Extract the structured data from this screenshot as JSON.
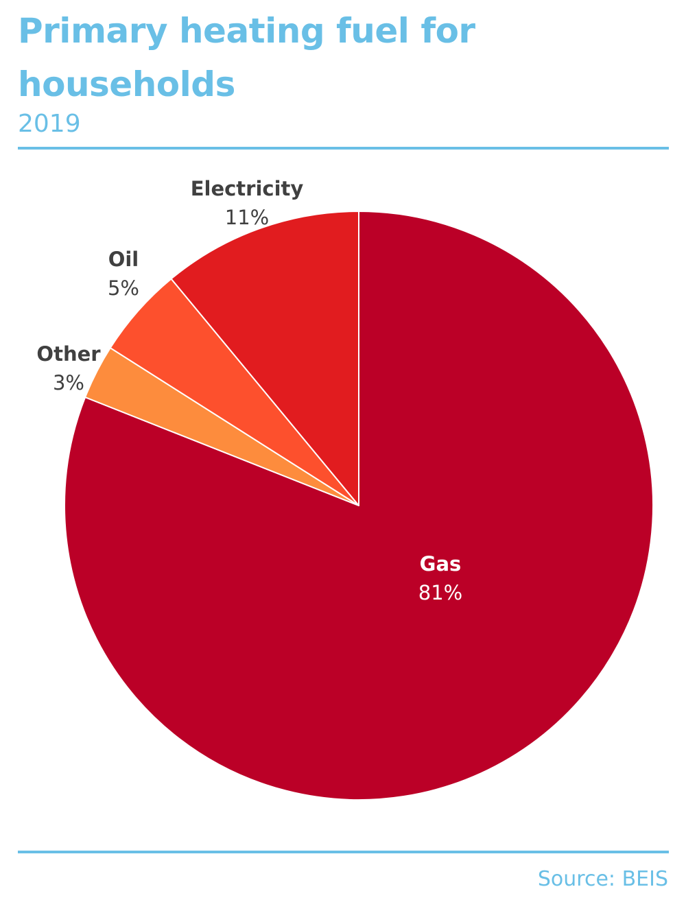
{
  "header": {
    "title": "Primary heating fuel for households",
    "subtitle": "2019"
  },
  "footer": {
    "source": "Source: BEIS"
  },
  "colors": {
    "accent": "#69bfe6",
    "gas": "#bb0027",
    "electricity": "#e11c1f",
    "oil": "#fd502d",
    "other": "#fd8c3d",
    "label_dark": "#404040",
    "label_light": "#ffffff"
  },
  "chart_data": {
    "type": "pie",
    "title": "Primary heating fuel for households",
    "subtitle": "2019",
    "start": "12 o'clock, clockwise",
    "slices": [
      {
        "label": "Gas",
        "value": 81,
        "display": "81%",
        "color": "#bb0027",
        "label_position": "inside"
      },
      {
        "label": "Other",
        "value": 3,
        "display": "3%",
        "color": "#fd8c3d",
        "label_position": "outside"
      },
      {
        "label": "Oil",
        "value": 5,
        "display": "5%",
        "color": "#fd502d",
        "label_position": "outside"
      },
      {
        "label": "Electricity",
        "value": 11,
        "display": "11%",
        "color": "#e11c1f",
        "label_position": "outside"
      }
    ],
    "legend": "none"
  }
}
